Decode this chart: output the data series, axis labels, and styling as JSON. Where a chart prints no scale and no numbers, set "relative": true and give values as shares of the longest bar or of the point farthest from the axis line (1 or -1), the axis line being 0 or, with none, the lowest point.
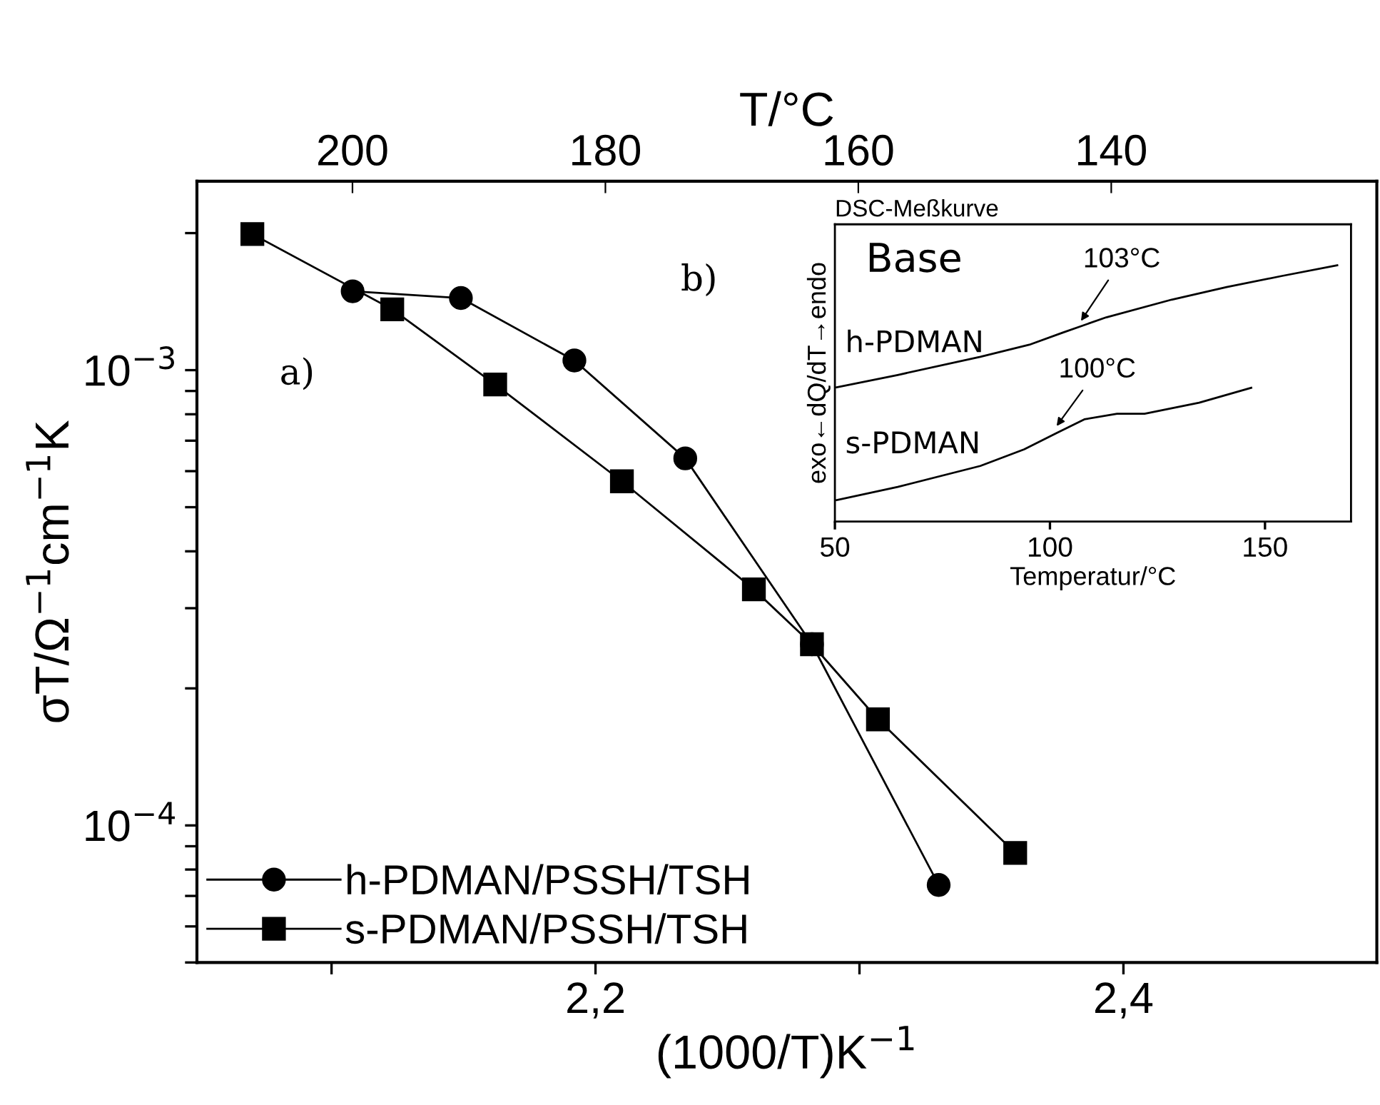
{
  "chart_data": [
    {
      "type": "line",
      "xlabel": "(1000/T)K$^{−1}$",
      "ylabel": "σT/Ω$^{−1}$cm$^{−1}$K",
      "x2label": "T/°C",
      "log": "y",
      "xlim": [
        2.049,
        2.496
      ],
      "ylim": [
        5e-05,
        0.0026
      ],
      "xticks": [
        {
          "value": 2.1,
          "label": null
        },
        {
          "value": 2.2,
          "label": "2,2"
        },
        {
          "value": 2.3,
          "label": null
        },
        {
          "value": 2.4,
          "label": "2,4"
        }
      ],
      "x2lim": [
        212.3,
        119
      ],
      "x2ticks": [
        200,
        180,
        160,
        140
      ],
      "yticks": [
        {
          "value": 5e-05,
          "label": null
        },
        {
          "value": 6e-05,
          "label": null
        },
        {
          "value": 7e-05,
          "label": null
        },
        {
          "value": 8e-05,
          "label": null
        },
        {
          "value": 9e-05,
          "label": null
        },
        {
          "value": 0.0001,
          "label": "10$^{−4}$"
        },
        {
          "value": 0.0002,
          "label": null
        },
        {
          "value": 0.0003,
          "label": null
        },
        {
          "value": 0.0004,
          "label": null
        },
        {
          "value": 0.0005,
          "label": null
        },
        {
          "value": 0.0006,
          "label": null
        },
        {
          "value": 0.0007,
          "label": null
        },
        {
          "value": 0.0008,
          "label": null
        },
        {
          "value": 0.0009,
          "label": null
        },
        {
          "value": 0.001,
          "label": "10$^{−3}$"
        },
        {
          "value": 0.002,
          "label": null
        }
      ],
      "grid": false,
      "legend": "bottom left",
      "series": [
        {
          "name": "h-PDMAN/PSSH/TSH",
          "color": "#000000",
          "marker": "circle",
          "x": [
            2.108,
            2.149,
            2.192,
            2.234,
            2.282,
            2.33
          ],
          "values": [
            0.00149,
            0.00144,
            0.00105,
            0.00064,
            0.00025,
            7.4e-05
          ]
        },
        {
          "name": "s-PDMAN/PSSH/TSH",
          "color": "#000000",
          "marker": "square",
          "x": [
            2.07,
            2.123,
            2.162,
            2.21,
            2.26,
            2.282,
            2.307,
            2.359
          ],
          "values": [
            0.00199,
            0.00136,
            0.00093,
            0.00057,
            0.00033,
            0.00025,
            0.000171,
            8.7e-05
          ]
        }
      ],
      "annotations": [
        "a)",
        "b)"
      ]
    },
    {
      "type": "line",
      "title": "DSC-Meßkurve",
      "xlabel": "Temperatur/°C",
      "ylabel": "exo←dQ/dT→endo",
      "relative": true,
      "xlim": [
        50,
        170
      ],
      "xticks": [
        50,
        100,
        150
      ],
      "grid": false,
      "series": [
        {
          "color": "#000000",
          "x": [
            50.4,
            64.6,
            83.8,
            95.2,
            102.9,
            113.1,
            128.3,
            141.1,
            153.8,
            166.8
          ],
          "values": [
            0.524,
            0.572,
            0.643,
            0.69,
            0.737,
            0.797,
            0.866,
            0.915,
            0.958,
            1.0
          ]
        },
        {
          "color": "#000000",
          "x": [
            50.4,
            64.6,
            83.8,
            94.0,
            101.6,
            108.0,
            115.6,
            122.0,
            134.7,
            146.8
          ],
          "values": [
            0.084,
            0.135,
            0.217,
            0.282,
            0.346,
            0.399,
            0.421,
            0.421,
            0.464,
            0.522
          ]
        }
      ],
      "annotations": [
        "Base",
        "h-PDMAN",
        "s-PDMAN",
        {
          "text": "103°C",
          "x": 106.7,
          "y": 0.77
        },
        {
          "text": "100°C",
          "x": 101,
          "y": 0.36
        }
      ]
    }
  ]
}
